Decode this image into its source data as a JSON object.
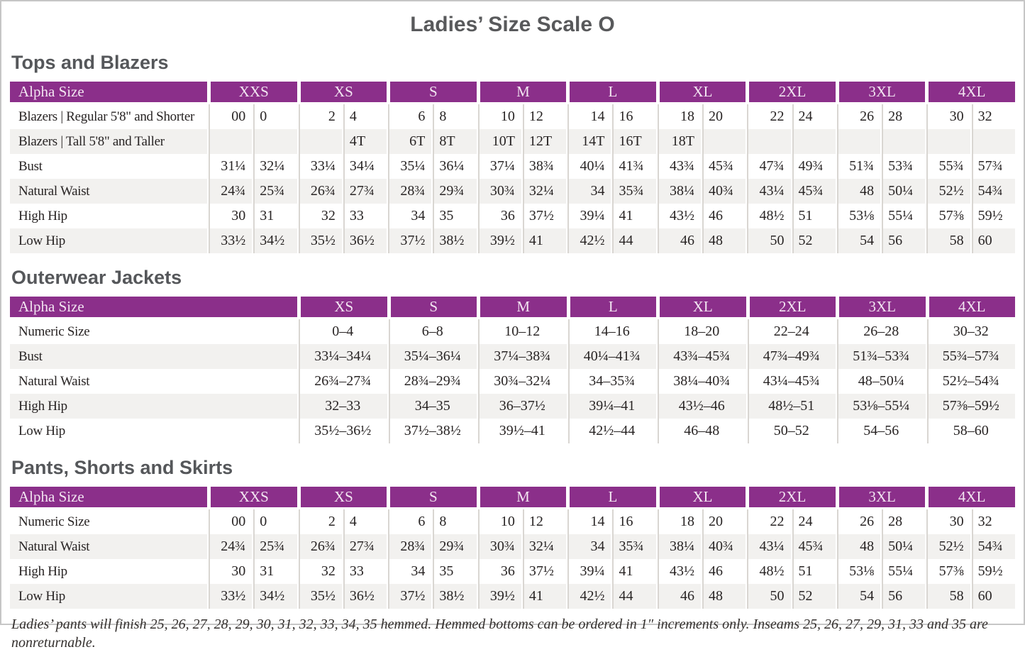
{
  "page": {
    "title": "Ladies’ Size Scale O",
    "footnote": "Ladies’ pants will finish 25, 26, 27, 28, 29, 30, 31, 32, 33, 34, 35 hemmed. Hemmed bottoms can be ordered in 1″ increments only. Inseams 25, 26, 27, 29, 31, 33 and 35 are nonreturnable."
  },
  "colors": {
    "header_purple": "#8b2f8a",
    "header_text": "#f2e5f1",
    "band_gray": "#f2f1ef",
    "divider_gray": "#d9d6d2",
    "heading_gray": "#58595b",
    "body_text": "#282424",
    "page_border": "#c6c6c6"
  },
  "tables": [
    {
      "type": "split",
      "section_title": "Tops and Blazers",
      "header_label": "Alpha Size",
      "sizes": [
        "XXS",
        "XS",
        "S",
        "M",
        "L",
        "XL",
        "2XL",
        "3XL",
        "4XL"
      ],
      "rows": [
        {
          "label": "Blazers | Regular 5'8\" and Shorter",
          "values": [
            [
              "00",
              "0"
            ],
            [
              "2",
              "4"
            ],
            [
              "6",
              "8"
            ],
            [
              "10",
              "12"
            ],
            [
              "14",
              "16"
            ],
            [
              "18",
              "20"
            ],
            [
              "22",
              "24"
            ],
            [
              "26",
              "28"
            ],
            [
              "30",
              "32"
            ]
          ]
        },
        {
          "label": "Blazers | Tall 5'8\" and Taller",
          "values": [
            [
              "",
              ""
            ],
            [
              "",
              "4T"
            ],
            [
              "6T",
              "8T"
            ],
            [
              "10T",
              "12T"
            ],
            [
              "14T",
              "16T"
            ],
            [
              "18T",
              ""
            ],
            [
              "",
              ""
            ],
            [
              "",
              ""
            ],
            [
              "",
              ""
            ]
          ]
        },
        {
          "label": "Bust",
          "values": [
            [
              "31¼",
              "32¼"
            ],
            [
              "33¼",
              "34¼"
            ],
            [
              "35¼",
              "36¼"
            ],
            [
              "37¼",
              "38¾"
            ],
            [
              "40¼",
              "41¾"
            ],
            [
              "43¾",
              "45¾"
            ],
            [
              "47¾",
              "49¾"
            ],
            [
              "51¾",
              "53¾"
            ],
            [
              "55¾",
              "57¾"
            ]
          ]
        },
        {
          "label": "Natural Waist",
          "values": [
            [
              "24¾",
              "25¾"
            ],
            [
              "26¾",
              "27¾"
            ],
            [
              "28¾",
              "29¾"
            ],
            [
              "30¾",
              "32¼"
            ],
            [
              "34",
              "35¾"
            ],
            [
              "38¼",
              "40¾"
            ],
            [
              "43¼",
              "45¾"
            ],
            [
              "48",
              "50¼"
            ],
            [
              "52½",
              "54¾"
            ]
          ]
        },
        {
          "label": "High Hip",
          "values": [
            [
              "30",
              "31"
            ],
            [
              "32",
              "33"
            ],
            [
              "34",
              "35"
            ],
            [
              "36",
              "37½"
            ],
            [
              "39¼",
              "41"
            ],
            [
              "43½",
              "46"
            ],
            [
              "48½",
              "51"
            ],
            [
              "53⅛",
              "55¼"
            ],
            [
              "57⅜",
              "59½"
            ]
          ]
        },
        {
          "label": "Low Hip",
          "values": [
            [
              "33½",
              "34½"
            ],
            [
              "35½",
              "36½"
            ],
            [
              "37½",
              "38½"
            ],
            [
              "39½",
              "41"
            ],
            [
              "42½",
              "44"
            ],
            [
              "46",
              "48"
            ],
            [
              "50",
              "52"
            ],
            [
              "54",
              "56"
            ],
            [
              "58",
              "60"
            ]
          ]
        }
      ]
    },
    {
      "type": "range",
      "section_title": "Outerwear Jackets",
      "header_label": "Alpha Size",
      "sizes": [
        "XS",
        "S",
        "M",
        "L",
        "XL",
        "2XL",
        "3XL",
        "4XL"
      ],
      "rows": [
        {
          "label": "Numeric Size",
          "values": [
            "0–4",
            "6–8",
            "10–12",
            "14–16",
            "18–20",
            "22–24",
            "26–28",
            "30–32"
          ]
        },
        {
          "label": "Bust",
          "values": [
            "33¼–34¼",
            "35¼–36¼",
            "37¼–38¾",
            "40¼–41¾",
            "43¾–45¾",
            "47¾–49¾",
            "51¾–53¾",
            "55¾–57¾"
          ]
        },
        {
          "label": "Natural Waist",
          "values": [
            "26¾–27¾",
            "28¾–29¾",
            "30¾–32¼",
            "34–35¾",
            "38¼–40¾",
            "43¼–45¾",
            "48–50¼",
            "52½–54¾"
          ]
        },
        {
          "label": "High Hip",
          "values": [
            "32–33",
            "34–35",
            "36–37½",
            "39¼–41",
            "43½–46",
            "48½–51",
            "53⅛–55¼",
            "57⅜–59½"
          ]
        },
        {
          "label": "Low Hip",
          "values": [
            "35½–36½",
            "37½–38½",
            "39½–41",
            "42½–44",
            "46–48",
            "50–52",
            "54–56",
            "58–60"
          ]
        }
      ]
    },
    {
      "type": "split",
      "section_title": "Pants, Shorts and Skirts",
      "header_label": "Alpha Size",
      "sizes": [
        "XXS",
        "XS",
        "S",
        "M",
        "L",
        "XL",
        "2XL",
        "3XL",
        "4XL"
      ],
      "rows": [
        {
          "label": "Numeric Size",
          "values": [
            [
              "00",
              "0"
            ],
            [
              "2",
              "4"
            ],
            [
              "6",
              "8"
            ],
            [
              "10",
              "12"
            ],
            [
              "14",
              "16"
            ],
            [
              "18",
              "20"
            ],
            [
              "22",
              "24"
            ],
            [
              "26",
              "28"
            ],
            [
              "30",
              "32"
            ]
          ]
        },
        {
          "label": "Natural Waist",
          "values": [
            [
              "24¾",
              "25¾"
            ],
            [
              "26¾",
              "27¾"
            ],
            [
              "28¾",
              "29¾"
            ],
            [
              "30¾",
              "32¼"
            ],
            [
              "34",
              "35¾"
            ],
            [
              "38¼",
              "40¾"
            ],
            [
              "43¼",
              "45¾"
            ],
            [
              "48",
              "50¼"
            ],
            [
              "52½",
              "54¾"
            ]
          ]
        },
        {
          "label": "High Hip",
          "values": [
            [
              "30",
              "31"
            ],
            [
              "32",
              "33"
            ],
            [
              "34",
              "35"
            ],
            [
              "36",
              "37½"
            ],
            [
              "39¼",
              "41"
            ],
            [
              "43½",
              "46"
            ],
            [
              "48½",
              "51"
            ],
            [
              "53⅛",
              "55¼"
            ],
            [
              "57⅜",
              "59½"
            ]
          ]
        },
        {
          "label": "Low Hip",
          "values": [
            [
              "33½",
              "34½"
            ],
            [
              "35½",
              "36½"
            ],
            [
              "37½",
              "38½"
            ],
            [
              "39½",
              "41"
            ],
            [
              "42½",
              "44"
            ],
            [
              "46",
              "48"
            ],
            [
              "50",
              "52"
            ],
            [
              "54",
              "56"
            ],
            [
              "58",
              "60"
            ]
          ]
        }
      ]
    }
  ]
}
